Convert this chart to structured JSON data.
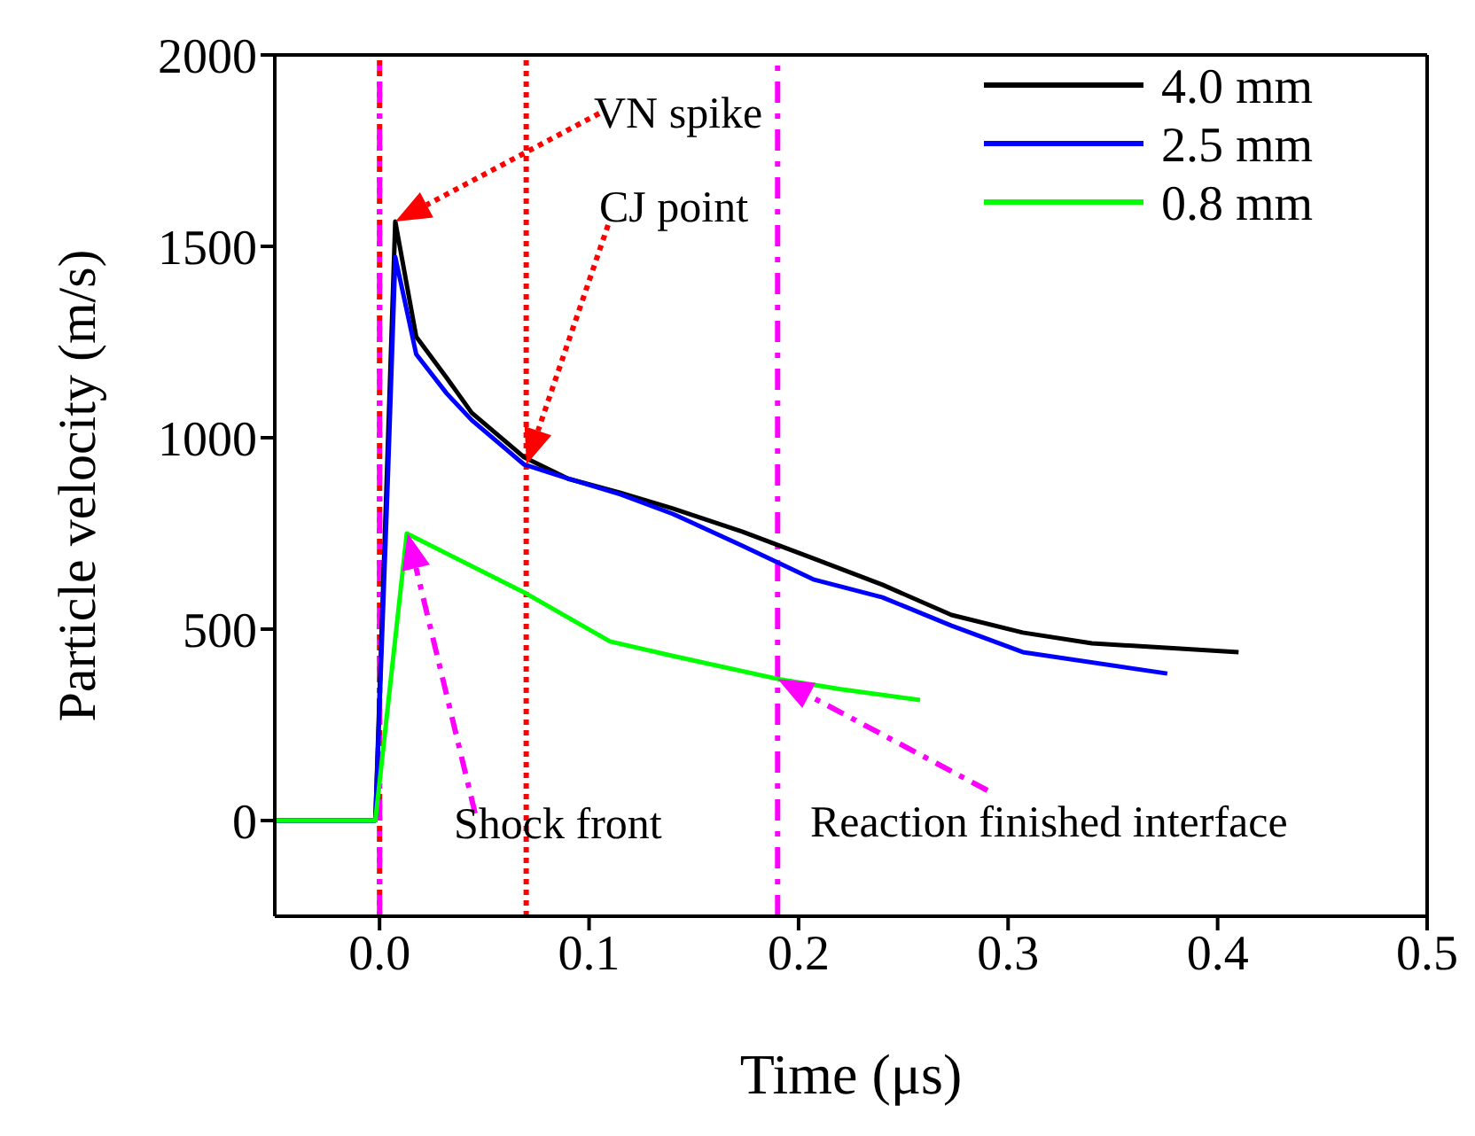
{
  "chart_data": {
    "type": "line",
    "xlabel": "Time (μs)",
    "ylabel": "Particle velocity (m/s)",
    "xlim": [
      -0.05,
      0.5
    ],
    "xticks": [
      {
        "value": 0,
        "label": "0.0"
      },
      0.1,
      0.2,
      0.3,
      0.4,
      0.5
    ],
    "ylim": [
      -250,
      2000
    ],
    "yticks": [
      0,
      500,
      1000,
      1500,
      2000
    ],
    "grid": false,
    "legend": "top right",
    "marker": "none",
    "line_style": "solid",
    "series": [
      {
        "name": "4.0 mm",
        "color": "#000000",
        "x": [
          -0.05,
          -0.002,
          0.004,
          0.0075,
          0.0175,
          0.032,
          0.044,
          0.069,
          0.09,
          0.115,
          0.14,
          0.173,
          0.207,
          0.24,
          0.273,
          0.307,
          0.34,
          0.41
        ],
        "values": [
          0,
          0,
          986,
          1565,
          1264,
          1157,
          1065,
          949,
          893,
          856,
          815,
          755,
          685,
          616,
          537,
          491,
          463,
          440
        ]
      },
      {
        "name": "2.5 mm",
        "color": "#0000ff",
        "x": [
          -0.05,
          -0.002,
          0.004,
          0.0075,
          0.0175,
          0.032,
          0.044,
          0.069,
          0.09,
          0.115,
          0.14,
          0.173,
          0.207,
          0.24,
          0.273,
          0.307,
          0.376
        ],
        "values": [
          0,
          0,
          900,
          1472,
          1218,
          1116,
          1046,
          930,
          893,
          852,
          801,
          718,
          630,
          583,
          509,
          440,
          384
        ]
      },
      {
        "name": "0.8 mm",
        "color": "#00ff00",
        "x": [
          -0.05,
          -0.002,
          0.013,
          0.07,
          0.11,
          0.14,
          0.19,
          0.22,
          0.258
        ],
        "values": [
          0,
          0,
          750,
          593,
          468,
          430,
          370,
          343,
          315
        ]
      }
    ],
    "ref_lines": [
      {
        "axis": "x",
        "value": 0,
        "color": "#ff0000",
        "line_style": "dotted"
      },
      {
        "axis": "x",
        "value": 0.07,
        "color": "#ff0000",
        "line_style": "dotted"
      },
      {
        "axis": "x",
        "value": 0,
        "color": "#ff00ff",
        "line_style": "dashed"
      },
      {
        "axis": "x",
        "value": 0.19,
        "color": "#ff00ff",
        "line_style": "dashed"
      }
    ],
    "annotations": [
      "VN spike",
      "CJ point",
      "Shock front",
      {
        "text": "Reaction finished interface",
        "x": 0.19,
        "y": 370
      }
    ]
  }
}
